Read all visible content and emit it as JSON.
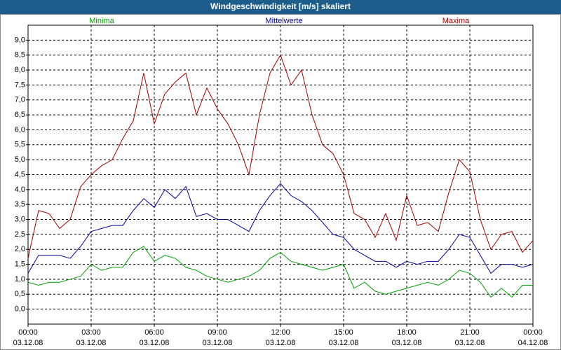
{
  "window_title": "Windgeschwindigkeit [m/s] skaliert",
  "chart_data": {
    "type": "line",
    "x": [
      0,
      0.5,
      1,
      1.5,
      2,
      2.5,
      3,
      3.5,
      4,
      4.5,
      5,
      5.5,
      6,
      6.5,
      7,
      7.5,
      8,
      8.5,
      9,
      9.5,
      10,
      10.5,
      11,
      11.5,
      12,
      12.5,
      13,
      13.5,
      14,
      14.5,
      15,
      15.5,
      16,
      16.5,
      17,
      17.5,
      18,
      18.5,
      19,
      19.5,
      20,
      20.5,
      21,
      21.5,
      22,
      22.5,
      23,
      23.5,
      24
    ],
    "series": [
      {
        "name": "Minima",
        "color": "#00a000",
        "values": [
          0.9,
          0.8,
          0.9,
          0.9,
          1.0,
          1.1,
          1.5,
          1.3,
          1.4,
          1.4,
          1.9,
          2.1,
          1.6,
          1.8,
          1.7,
          1.4,
          1.3,
          1.1,
          1.0,
          0.9,
          1.0,
          1.1,
          1.3,
          1.7,
          1.9,
          1.6,
          1.5,
          1.4,
          1.3,
          1.4,
          1.5,
          0.7,
          0.9,
          0.6,
          0.5,
          0.6,
          0.7,
          0.8,
          0.9,
          0.8,
          1.0,
          1.3,
          1.2,
          0.9,
          0.4,
          0.7,
          0.4,
          0.8,
          0.8
        ]
      },
      {
        "name": "Mittelwerte",
        "color": "#0000a0",
        "values": [
          1.2,
          1.8,
          1.8,
          1.8,
          1.7,
          2.1,
          2.6,
          2.7,
          2.8,
          2.8,
          3.3,
          3.7,
          3.4,
          4.0,
          3.7,
          4.1,
          3.1,
          3.2,
          3.0,
          3.0,
          2.8,
          2.6,
          3.3,
          3.8,
          4.2,
          3.8,
          3.6,
          3.3,
          2.9,
          2.5,
          2.4,
          2.0,
          1.8,
          1.6,
          1.6,
          1.4,
          1.6,
          1.5,
          1.6,
          1.6,
          2.0,
          2.5,
          2.4,
          1.8,
          1.2,
          1.5,
          1.5,
          1.4,
          1.5
        ]
      },
      {
        "name": "Maxima",
        "color": "#a00000",
        "values": [
          1.7,
          3.3,
          3.2,
          2.7,
          3.0,
          4.1,
          4.5,
          4.8,
          5.0,
          5.7,
          6.3,
          7.9,
          6.2,
          7.2,
          7.6,
          7.9,
          6.5,
          7.4,
          6.7,
          6.2,
          5.5,
          4.5,
          6.5,
          7.9,
          8.5,
          7.5,
          8.0,
          6.5,
          5.5,
          5.2,
          4.5,
          3.2,
          3.0,
          2.4,
          3.2,
          2.3,
          3.8,
          2.8,
          2.9,
          2.6,
          3.9,
          5.0,
          4.6,
          3.0,
          2.0,
          2.5,
          2.6,
          1.9,
          2.3
        ]
      }
    ],
    "xlim": [
      0,
      24
    ],
    "xticks": [
      {
        "value": 0,
        "label": "00:00"
      },
      {
        "value": 3,
        "label": "03:00"
      },
      {
        "value": 6,
        "label": "06:00"
      },
      {
        "value": 9,
        "label": "09:00"
      },
      {
        "value": 12,
        "label": "12:00"
      },
      {
        "value": 15,
        "label": "15:00"
      },
      {
        "value": 18,
        "label": "18:00"
      },
      {
        "value": 21,
        "label": "21:00"
      },
      {
        "value": 24,
        "label": "00:00"
      }
    ],
    "xtick_dates": [
      "03.12.08",
      "03.12.08",
      "03.12.08",
      "03.12.08",
      "03.12.08",
      "03.12.08",
      "03.12.08",
      "03.12.08",
      "04.12.08"
    ],
    "ylim": [
      -0.5,
      9.5
    ],
    "yticks": [
      {
        "value": 0,
        "label": "0,0"
      },
      {
        "value": 0.5,
        "label": "0,5"
      },
      {
        "value": 1,
        "label": "1,0"
      },
      {
        "value": 1.5,
        "label": "1,5"
      },
      {
        "value": 2,
        "label": "2,0"
      },
      {
        "value": 2.5,
        "label": "2,5"
      },
      {
        "value": 3,
        "label": "3,0"
      },
      {
        "value": 3.5,
        "label": "3,5"
      },
      {
        "value": 4,
        "label": "4,0"
      },
      {
        "value": 4.5,
        "label": "4,5"
      },
      {
        "value": 5,
        "label": "5,0"
      },
      {
        "value": 5.5,
        "label": "5,5"
      },
      {
        "value": 6,
        "label": "6,0"
      },
      {
        "value": 6.5,
        "label": "6,5"
      },
      {
        "value": 7,
        "label": "7,0"
      },
      {
        "value": 7.5,
        "label": "7,5"
      },
      {
        "value": 8,
        "label": "8,0"
      },
      {
        "value": 8.5,
        "label": "8,5"
      },
      {
        "value": 9,
        "label": "9,0"
      }
    ],
    "grid": true
  }
}
